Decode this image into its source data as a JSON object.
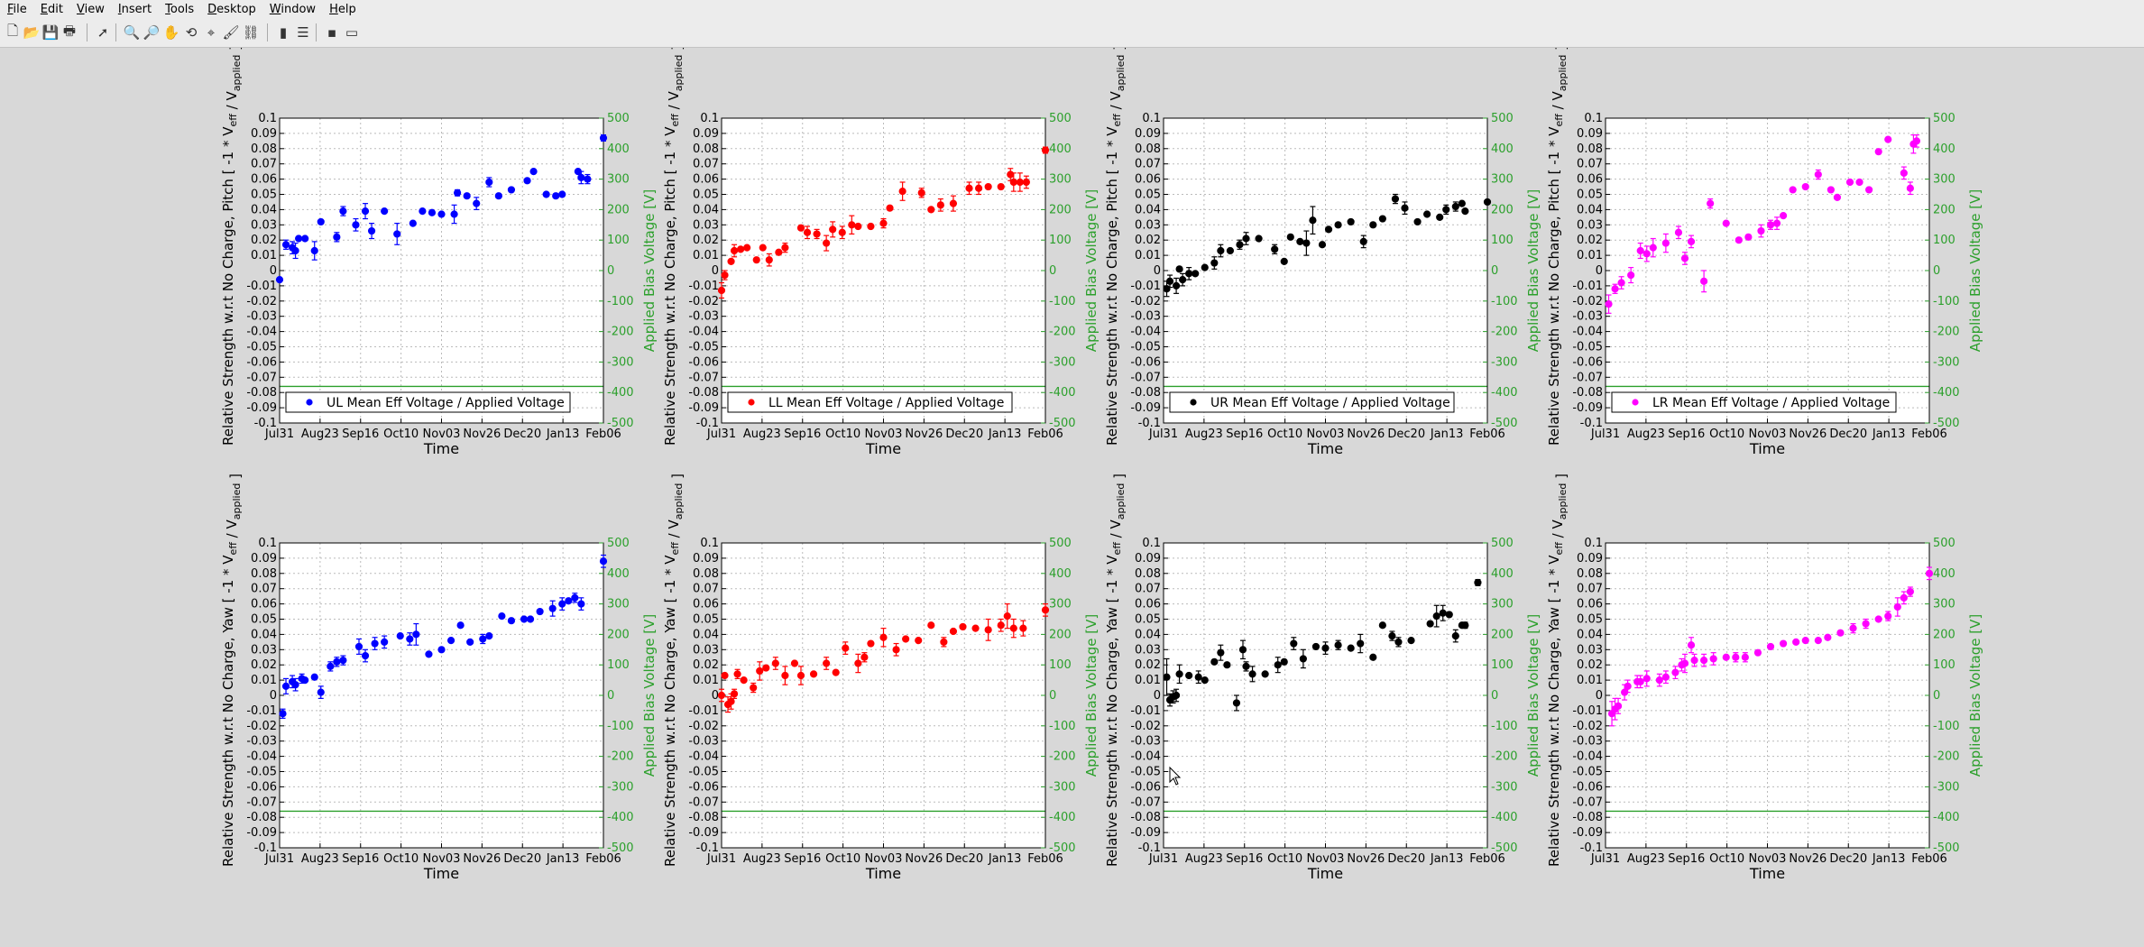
{
  "menu": [
    "File",
    "Edit",
    "View",
    "Insert",
    "Tools",
    "Desktop",
    "Window",
    "Help"
  ],
  "toolbar": [
    {
      "icon": "new-figure-icon",
      "glyph": "🗋"
    },
    {
      "icon": "open-file-icon",
      "glyph": "📂"
    },
    {
      "icon": "save-icon",
      "glyph": "💾"
    },
    {
      "icon": "print-icon",
      "glyph": "🖶"
    },
    {
      "icon": "select-arrow-icon",
      "glyph": "➚"
    },
    {
      "icon": "zoom-in-icon",
      "glyph": "🔍"
    },
    {
      "icon": "zoom-out-icon",
      "glyph": "🔎"
    },
    {
      "icon": "pan-hand-icon",
      "glyph": "✋"
    },
    {
      "icon": "rotate-3d-icon",
      "glyph": "⟲"
    },
    {
      "icon": "data-cursor-icon",
      "glyph": "⌖"
    },
    {
      "icon": "brush-icon",
      "glyph": "🖌"
    },
    {
      "icon": "link-plot-icon",
      "glyph": "⛓"
    },
    {
      "icon": "colorbar-icon",
      "glyph": "▮"
    },
    {
      "icon": "legend-icon",
      "glyph": "☰"
    },
    {
      "icon": "hide-tools-icon",
      "glyph": "▪"
    },
    {
      "icon": "dock-icon",
      "glyph": "▭"
    }
  ],
  "common": {
    "xticks": [
      "Jul31",
      "Aug23",
      "Sep16",
      "Oct10",
      "Nov03",
      "Nov26",
      "Dec20",
      "Jan13",
      "Feb06"
    ],
    "xlabel": "Time",
    "y2label": "Applied Bias Voltage [V]",
    "ylabel_pitch": "Relative Strength w.r.t No Charge, Pitch [ -1 * V_eff / V_applied ]",
    "ylabel_yaw": "Relative Strength w.r.t No Charge, Yaw [ -1 * V_eff / V_applied ]",
    "ylim": [
      -0.1,
      0.1
    ],
    "y2lim": [
      -500,
      500
    ],
    "bias_voltage": -380,
    "bias_color": "#2ca02c"
  },
  "chart_data": [
    {
      "type": "scatter",
      "name": "UL Mean Eff Voltage / Applied Voltage",
      "row": "pitch",
      "color": "#0000ff",
      "x": [
        0,
        2,
        4,
        5,
        6,
        8,
        11,
        13,
        18,
        20,
        24,
        27,
        29,
        33,
        37,
        42,
        45,
        48,
        51,
        55,
        56,
        59,
        62,
        66,
        69,
        73,
        78,
        80,
        84,
        87,
        89,
        94,
        95,
        97,
        102
      ],
      "y": [
        -0.006,
        0.017,
        0.015,
        0.013,
        0.021,
        0.021,
        0.013,
        0.032,
        0.022,
        0.039,
        0.03,
        0.039,
        0.026,
        0.039,
        0.024,
        0.031,
        0.039,
        0.038,
        0.037,
        0.037,
        0.051,
        0.049,
        0.044,
        0.058,
        0.049,
        0.053,
        0.059,
        0.065,
        0.05,
        0.049,
        0.05,
        0.065,
        0.061,
        0.06,
        0.087
      ],
      "err": [
        0,
        0.003,
        0.004,
        0.005,
        0,
        0,
        0.006,
        0,
        0.003,
        0.003,
        0.004,
        0.005,
        0.005,
        0,
        0.007,
        0,
        0,
        0,
        0,
        0.006,
        0.002,
        0,
        0.004,
        0.003,
        0,
        0,
        0,
        0,
        0,
        0,
        0,
        0,
        0.004,
        0.003,
        0.002
      ]
    },
    {
      "type": "scatter",
      "name": "LL Mean Eff Voltage / Applied Voltage",
      "row": "pitch",
      "color": "#ff0000",
      "x": [
        0,
        1,
        3,
        4,
        6,
        8,
        11,
        13,
        15,
        18,
        20,
        25,
        27,
        30,
        33,
        35,
        38,
        41,
        43,
        47,
        51,
        53,
        57,
        63,
        66,
        69,
        73,
        78,
        81,
        84,
        88,
        91,
        92,
        94,
        96,
        102
      ],
      "y": [
        -0.013,
        -0.003,
        0.006,
        0.013,
        0.014,
        0.015,
        0.007,
        0.015,
        0.007,
        0.012,
        0.015,
        0.028,
        0.025,
        0.024,
        0.018,
        0.027,
        0.025,
        0.03,
        0.029,
        0.029,
        0.031,
        0.041,
        0.052,
        0.051,
        0.04,
        0.043,
        0.044,
        0.054,
        0.054,
        0.055,
        0.055,
        0.063,
        0.058,
        0.058,
        0.058,
        0.079
      ],
      "err": [
        0.005,
        0.003,
        0,
        0.004,
        0,
        0,
        0,
        0,
        0.004,
        0,
        0.003,
        0,
        0.004,
        0.003,
        0.005,
        0.005,
        0.004,
        0.006,
        0,
        0,
        0.003,
        0,
        0.006,
        0.003,
        0,
        0.004,
        0.005,
        0.004,
        0.004,
        0,
        0,
        0.004,
        0.006,
        0.006,
        0.004,
        0.002
      ]
    },
    {
      "type": "scatter",
      "name": "UR Mean Eff Voltage / Applied Voltage",
      "row": "pitch",
      "color": "#000000",
      "x": [
        1,
        2,
        4,
        5,
        6,
        8,
        10,
        13,
        16,
        18,
        21,
        24,
        26,
        30,
        35,
        38,
        40,
        43,
        45,
        47,
        50,
        52,
        55,
        59,
        63,
        66,
        69,
        73,
        76,
        80,
        83,
        87,
        89,
        92,
        94,
        95,
        102
      ],
      "y": [
        -0.012,
        -0.007,
        -0.01,
        0.001,
        -0.006,
        -0.002,
        -0.002,
        0.002,
        0.005,
        0.013,
        0.013,
        0.017,
        0.021,
        0.021,
        0.014,
        0.006,
        0.022,
        0.019,
        0.018,
        0.033,
        0.017,
        0.027,
        0.03,
        0.032,
        0.019,
        0.03,
        0.034,
        0.047,
        0.041,
        0.032,
        0.037,
        0.035,
        0.04,
        0.042,
        0.044,
        0.039,
        0.045
      ],
      "err": [
        0.005,
        0.004,
        0.005,
        0,
        0.004,
        0.004,
        0,
        0,
        0.004,
        0.004,
        0,
        0.003,
        0.004,
        0,
        0.003,
        0,
        0,
        0,
        0.008,
        0.009,
        0,
        0,
        0,
        0,
        0.004,
        0,
        0,
        0.003,
        0.004,
        0,
        0,
        0,
        0.003,
        0.003,
        0,
        0,
        0
      ]
    },
    {
      "type": "scatter",
      "name": "LR Mean Eff Voltage / Applied Voltage",
      "row": "pitch",
      "color": "#ff00ff",
      "x": [
        1,
        3,
        5,
        8,
        11,
        13,
        15,
        19,
        23,
        25,
        27,
        31,
        33,
        38,
        42,
        45,
        49,
        52,
        54,
        56,
        59,
        63,
        67,
        71,
        73,
        77,
        80,
        83,
        86,
        89,
        94,
        96,
        97,
        98
      ],
      "y": [
        -0.022,
        -0.012,
        -0.008,
        -0.003,
        0.013,
        0.011,
        0.015,
        0.018,
        0.025,
        0.008,
        0.019,
        -0.007,
        0.044,
        0.031,
        0.02,
        0.022,
        0.026,
        0.03,
        0.031,
        0.036,
        0.053,
        0.055,
        0.063,
        0.053,
        0.048,
        0.058,
        0.058,
        0.053,
        0.078,
        0.086,
        0.064,
        0.054,
        0.083,
        0.085
      ],
      "err": [
        0.006,
        0.003,
        0.004,
        0.005,
        0.005,
        0.005,
        0.006,
        0.006,
        0.004,
        0.004,
        0.004,
        0.007,
        0.003,
        0,
        0,
        0,
        0.004,
        0.003,
        0.004,
        0,
        0,
        0,
        0.003,
        0,
        0,
        0,
        0,
        0,
        0,
        0,
        0.004,
        0.004,
        0.006,
        0.004
      ]
    },
    {
      "type": "scatter",
      "name": "UL Mean Eff Voltage / Applied Voltage",
      "row": "yaw",
      "color": "#0000ff",
      "x": [
        1,
        2,
        4,
        5,
        7,
        8,
        11,
        13,
        16,
        18,
        20,
        25,
        27,
        30,
        33,
        38,
        41,
        43,
        47,
        51,
        54,
        57,
        60,
        64,
        66,
        70,
        73,
        77,
        79,
        82,
        86,
        89,
        91,
        93,
        95,
        102
      ],
      "y": [
        -0.012,
        0.006,
        0.009,
        0.007,
        0.011,
        0.01,
        0.012,
        0.002,
        0.019,
        0.022,
        0.023,
        0.032,
        0.026,
        0.034,
        0.035,
        0.039,
        0.037,
        0.04,
        0.027,
        0.03,
        0.036,
        0.046,
        0.035,
        0.037,
        0.039,
        0.052,
        0.049,
        0.05,
        0.05,
        0.055,
        0.057,
        0.06,
        0.062,
        0.064,
        0.06,
        0.088
      ],
      "err": [
        0.003,
        0.005,
        0.004,
        0.004,
        0.003,
        0,
        0,
        0.004,
        0.003,
        0.003,
        0.003,
        0.005,
        0.004,
        0.004,
        0.004,
        0,
        0.004,
        0.007,
        0,
        0,
        0,
        0,
        0,
        0.003,
        0,
        0,
        0,
        0,
        0,
        0,
        0.005,
        0.004,
        0,
        0.003,
        0.004,
        0.004
      ]
    },
    {
      "type": "scatter",
      "name": "LL Mean Eff Voltage / Applied Voltage",
      "row": "yaw",
      "color": "#ff0000",
      "x": [
        0,
        1,
        2,
        3,
        4,
        5,
        7,
        10,
        12,
        14,
        17,
        20,
        23,
        25,
        29,
        33,
        36,
        39,
        43,
        45,
        47,
        51,
        55,
        58,
        62,
        66,
        70,
        73,
        76,
        80,
        84,
        88,
        90,
        92,
        95,
        102
      ],
      "y": [
        0,
        0.013,
        -0.006,
        -0.004,
        0.001,
        0.014,
        0.01,
        0.005,
        0.016,
        0.018,
        0.021,
        0.013,
        0.021,
        0.013,
        0.014,
        0.021,
        0.015,
        0.031,
        0.021,
        0.025,
        0.034,
        0.038,
        0.03,
        0.037,
        0.036,
        0.046,
        0.035,
        0.042,
        0.045,
        0.044,
        0.043,
        0.046,
        0.052,
        0.044,
        0.044,
        0.056
      ],
      "err": [
        0.004,
        0,
        0.005,
        0.005,
        0.003,
        0.003,
        0,
        0.003,
        0.006,
        0,
        0.004,
        0.006,
        0,
        0.006,
        0,
        0.004,
        0,
        0.004,
        0.006,
        0.003,
        0,
        0.006,
        0.004,
        0,
        0,
        0,
        0.003,
        0,
        0,
        0,
        0.007,
        0.004,
        0.008,
        0.006,
        0.005,
        0.004
      ]
    },
    {
      "type": "scatter",
      "name": "UR Mean Eff Voltage / Applied Voltage",
      "row": "yaw",
      "color": "#000000",
      "x": [
        1,
        2,
        3,
        4,
        5,
        8,
        11,
        13,
        16,
        18,
        20,
        23,
        25,
        26,
        28,
        32,
        36,
        38,
        41,
        44,
        48,
        51,
        55,
        59,
        62,
        66,
        69,
        72,
        74,
        78,
        84,
        86,
        88,
        90,
        92,
        94,
        95,
        99
      ],
      "y": [
        0.012,
        -0.003,
        -0.001,
        0,
        0.014,
        0.013,
        0.012,
        0.01,
        0.022,
        0.028,
        0.02,
        -0.005,
        0.03,
        0.019,
        0.014,
        0.014,
        0.02,
        0.022,
        0.034,
        0.024,
        0.032,
        0.031,
        0.033,
        0.031,
        0.034,
        0.025,
        0.046,
        0.039,
        0.035,
        0.036,
        0.047,
        0.052,
        0.054,
        0.053,
        0.039,
        0.046,
        0.046,
        0.074
      ],
      "err": [
        0.012,
        0.004,
        0.004,
        0.004,
        0.006,
        0,
        0.004,
        0,
        0,
        0.005,
        0,
        0.005,
        0.006,
        0.003,
        0.005,
        0,
        0.005,
        0,
        0.004,
        0.006,
        0,
        0.004,
        0.003,
        0,
        0.006,
        0,
        0,
        0.003,
        0.003,
        0,
        0,
        0.007,
        0.005,
        0,
        0.004,
        0,
        0.002,
        0.002
      ]
    },
    {
      "type": "scatter",
      "name": "LR Mean Eff Voltage / Applied Voltage",
      "row": "yaw",
      "color": "#ff00ff",
      "x": [
        2,
        3,
        4,
        6,
        7,
        10,
        11,
        13,
        17,
        19,
        22,
        24,
        25,
        27,
        28,
        31,
        34,
        38,
        41,
        44,
        48,
        52,
        56,
        60,
        63,
        67,
        70,
        74,
        78,
        82,
        86,
        89,
        92,
        94,
        96,
        102
      ],
      "y": [
        -0.012,
        -0.009,
        -0.007,
        0.002,
        0.006,
        0.009,
        0.009,
        0.011,
        0.01,
        0.012,
        0.015,
        0.02,
        0.021,
        0.033,
        0.023,
        0.023,
        0.024,
        0.025,
        0.025,
        0.025,
        0.028,
        0.032,
        0.034,
        0.035,
        0.036,
        0.036,
        0.038,
        0.041,
        0.044,
        0.047,
        0.05,
        0.052,
        0.058,
        0.064,
        0.068,
        0.08
      ],
      "err": [
        0.008,
        0.007,
        0.005,
        0.005,
        0.004,
        0.004,
        0.004,
        0.005,
        0.004,
        0.004,
        0.004,
        0.004,
        0.006,
        0.005,
        0.004,
        0.004,
        0.004,
        0,
        0.003,
        0.003,
        0,
        0,
        0,
        0,
        0,
        0,
        0,
        0,
        0.003,
        0.003,
        0,
        0.003,
        0.006,
        0.004,
        0.003,
        0.004
      ]
    }
  ]
}
